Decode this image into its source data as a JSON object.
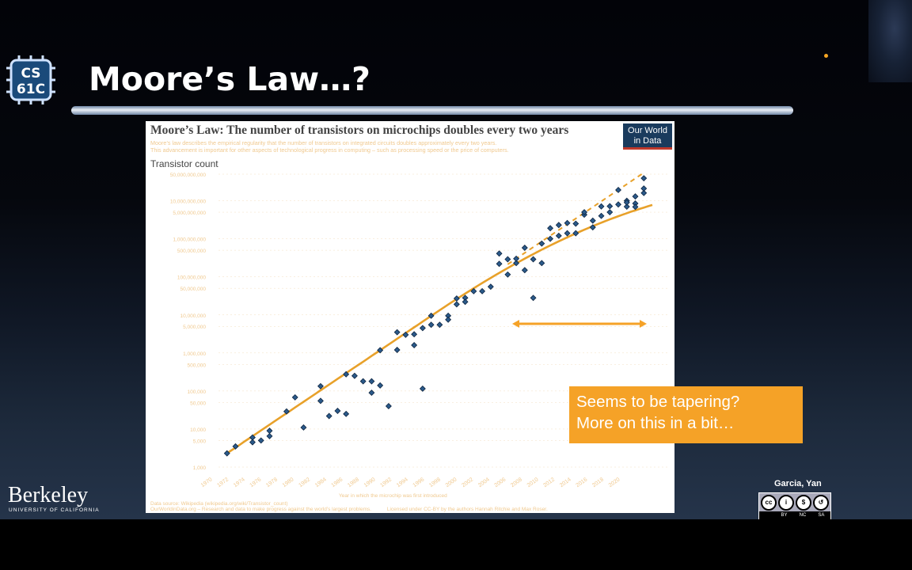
{
  "slide": {
    "logo_line1": "CS",
    "logo_line2": "61C",
    "title": "Moore’s Law…?",
    "callout_line1": "Seems to be tapering?",
    "callout_line2": "More on this in a bit…",
    "berkeley_wordmark": "Berkeley",
    "berkeley_sub": "UNIVERSITY OF CALIFORNIA",
    "authors": "Garcia, Yan",
    "license_labels": [
      "BY",
      "NC",
      "SA"
    ],
    "accent_color": "#f5a227"
  },
  "chart_data": {
    "type": "scatter",
    "title": "Moore’s Law: The number of transistors on microchips doubles every two years",
    "subtitle_line1": "Moore’s law describes the empirical regularity that the number of transistors on integrated circuits doubles approximately every two years.",
    "subtitle_line2": "This advancement is important for other aspects of technological progress in computing – such as processing speed or the price of computers.",
    "ylabel": "Transistor count",
    "badge_line1": "Our World",
    "badge_line2": "in Data",
    "y_scale": "log",
    "y_ticks": [
      "50,000,000,000",
      "10,000,000,000",
      "5,000,000,000",
      "1,000,000,000",
      "500,000,000",
      "100,000,000",
      "50,000,000",
      "10,000,000",
      "5,000,000",
      "1,000,000",
      "500,000",
      "100,000",
      "50,000",
      "10,000",
      "5,000",
      "1,000"
    ],
    "x_ticks": [
      "1970",
      "1972",
      "1974",
      "1976",
      "1978",
      "1980",
      "1982",
      "1984",
      "1986",
      "1988",
      "1990",
      "1992",
      "1994",
      "1996",
      "1998",
      "2000",
      "2002",
      "2004",
      "2006",
      "2008",
      "2010",
      "2012",
      "2014",
      "2016",
      "2018",
      "2020"
    ],
    "x_caption": "Year in which the microchip was first introduced",
    "footer_line1": "Data source: Wikipedia (wikipedia.org/wiki/Transistor_count)",
    "footer_line2": "OurWorldinData.org – Research and data to make progress against the world’s largest problems.",
    "footer_right": "Licensed under CC-BY by the authors Hannah Ritchie and Max Roser.",
    "xlim": [
      1970,
      2021
    ],
    "ylim": [
      1000,
      50000000000
    ],
    "points": [
      [
        1971,
        2300
      ],
      [
        1972,
        3500
      ],
      [
        1974,
        6000
      ],
      [
        1974,
        4500
      ],
      [
        1975,
        5000
      ],
      [
        1976,
        9000
      ],
      [
        1976,
        6500
      ],
      [
        1978,
        29000
      ],
      [
        1979,
        68000
      ],
      [
        1980,
        11000
      ],
      [
        1982,
        134000
      ],
      [
        1982,
        55000
      ],
      [
        1983,
        22000
      ],
      [
        1984,
        30000
      ],
      [
        1985,
        275000
      ],
      [
        1985,
        25000
      ],
      [
        1986,
        250000
      ],
      [
        1987,
        180000
      ],
      [
        1988,
        180000
      ],
      [
        1988,
        90000
      ],
      [
        1989,
        1180000
      ],
      [
        1989,
        140000
      ],
      [
        1990,
        40000
      ],
      [
        1991,
        1200000
      ],
      [
        1991,
        3500000
      ],
      [
        1992,
        3000000
      ],
      [
        1993,
        1600000
      ],
      [
        1993,
        3100000
      ],
      [
        1994,
        4500000
      ],
      [
        1994,
        115000
      ],
      [
        1995,
        5500000
      ],
      [
        1995,
        9500000
      ],
      [
        1996,
        5500000
      ],
      [
        1997,
        9500000
      ],
      [
        1997,
        7500000
      ],
      [
        1998,
        19000000
      ],
      [
        1998,
        27000000
      ],
      [
        1999,
        28000000
      ],
      [
        1999,
        22000000
      ],
      [
        2000,
        42000000
      ],
      [
        2001,
        42000000
      ],
      [
        2002,
        55000000
      ],
      [
        2003,
        410000000
      ],
      [
        2003,
        220000000
      ],
      [
        2004,
        115000000
      ],
      [
        2004,
        290000000
      ],
      [
        2005,
        230000000
      ],
      [
        2005,
        300000000
      ],
      [
        2006,
        580000000
      ],
      [
        2006,
        150000000
      ],
      [
        2007,
        290000000
      ],
      [
        2007,
        28000000
      ],
      [
        2008,
        750000000
      ],
      [
        2008,
        230000000
      ],
      [
        2009,
        1900000000
      ],
      [
        2009,
        1000000000
      ],
      [
        2010,
        1200000000
      ],
      [
        2010,
        2300000000
      ],
      [
        2011,
        1400000000
      ],
      [
        2011,
        2600000000
      ],
      [
        2012,
        2500000000
      ],
      [
        2012,
        1400000000
      ],
      [
        2013,
        4300000000
      ],
      [
        2013,
        5000000000
      ],
      [
        2014,
        3000000000
      ],
      [
        2014,
        2000000000
      ],
      [
        2015,
        4000000000
      ],
      [
        2015,
        7100000000
      ],
      [
        2016,
        7200000000
      ],
      [
        2016,
        5000000000
      ],
      [
        2017,
        8000000000
      ],
      [
        2017,
        19200000000
      ],
      [
        2018,
        7000000000
      ],
      [
        2018,
        10000000000
      ],
      [
        2019,
        13000000000
      ],
      [
        2019,
        8500000000
      ],
      [
        2020,
        16000000000
      ],
      [
        2020,
        39000000000
      ],
      [
        2020,
        21000000000
      ],
      [
        2019,
        6900000000
      ],
      [
        2018,
        9000000000
      ]
    ]
  }
}
